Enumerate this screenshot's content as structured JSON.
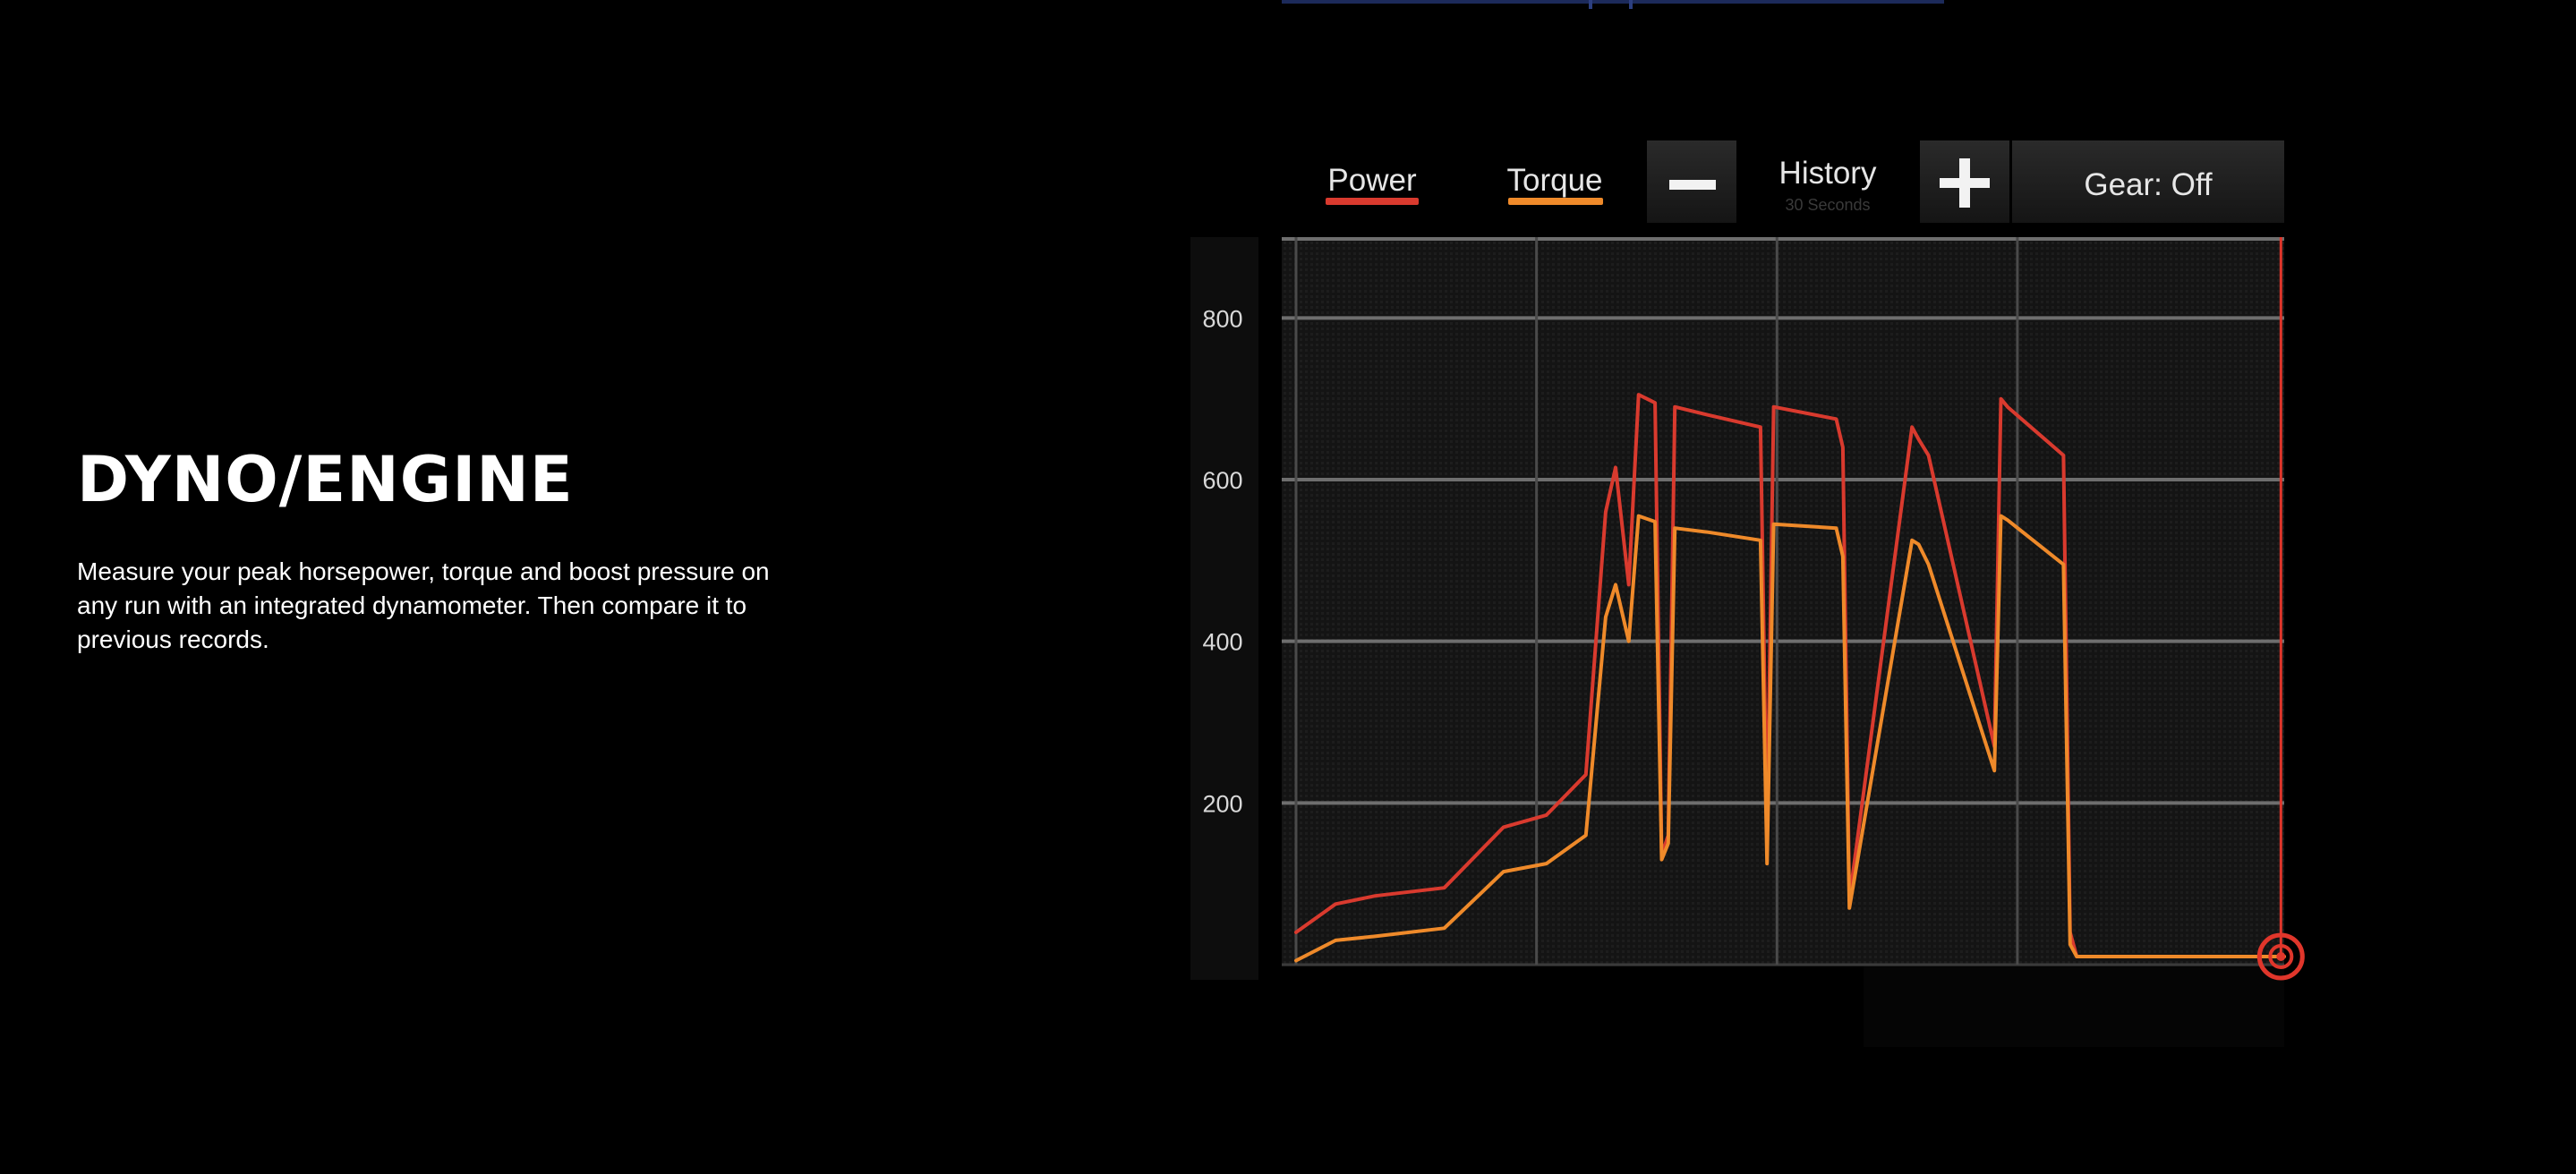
{
  "section": {
    "title": "DYNO/ENGINE",
    "description": "Measure your peak horsepower, torque and boost pressure on any run with an integrated dynamometer. Then compare it to previous records."
  },
  "toolbar": {
    "power_label": "Power",
    "torque_label": "Torque",
    "zoom_out_icon": "minus-icon",
    "history_label": "History",
    "history_sub": "30 Seconds",
    "zoom_in_icon": "plus-icon",
    "gear_label": "Gear: Off"
  },
  "colors": {
    "background": "#000000",
    "power": "#d93a2e",
    "torque": "#ef8a2a",
    "cursor": "#e0362b",
    "grid": "#6e6e6e",
    "panel": "#1a1a1a",
    "sliver": "#1c2a5a"
  },
  "chart_data": {
    "type": "line",
    "x_unit": "seconds",
    "x": [
      0,
      1.2,
      2.4,
      4.5,
      6.3,
      7.6,
      8.8,
      9.4,
      9.7,
      10.1,
      10.4,
      10.9,
      11.1,
      11.3,
      11.5,
      12.5,
      14.1,
      14.3,
      14.5,
      16.4,
      16.6,
      16.8,
      18.7,
      18.9,
      19.2,
      21.2,
      21.4,
      21.6,
      23.3,
      23.5,
      23.7,
      27.0,
      27.6,
      30
    ],
    "xlim": [
      0,
      30
    ],
    "ylim": [
      0,
      900
    ],
    "yticks": [
      200,
      400,
      600,
      800
    ],
    "cursor_x": 29.9,
    "series": [
      {
        "name": "Power",
        "color": "#d93a2e",
        "values": [
          40,
          75,
          85,
          95,
          170,
          185,
          235,
          560,
          615,
          470,
          705,
          695,
          135,
          160,
          690,
          680,
          665,
          160,
          690,
          675,
          640,
          80,
          665,
          650,
          630,
          270,
          700,
          690,
          630,
          40,
          10,
          10,
          10,
          10
        ]
      },
      {
        "name": "Torque",
        "color": "#ef8a2a",
        "values": [
          5,
          30,
          35,
          45,
          115,
          125,
          160,
          430,
          470,
          400,
          555,
          548,
          130,
          150,
          540,
          535,
          525,
          125,
          545,
          540,
          505,
          70,
          525,
          520,
          495,
          240,
          555,
          550,
          495,
          25,
          10,
          10,
          10,
          10
        ]
      }
    ]
  }
}
